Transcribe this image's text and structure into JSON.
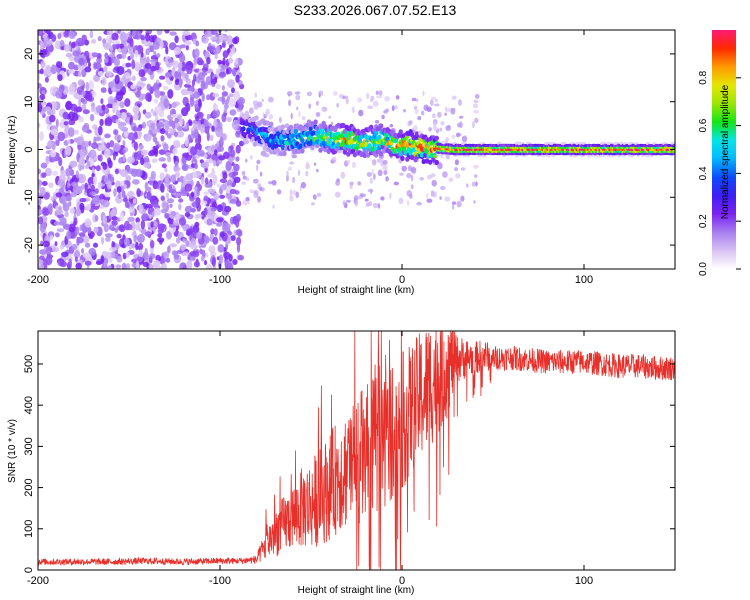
{
  "figure": {
    "title": "S233.2026.067.07.52.E13"
  },
  "colors": {
    "snr_line": "#e8302a",
    "colormap": [
      "#ffffff",
      "#d9c2f5",
      "#a77ff0",
      "#7b22f2",
      "#3c1ff5",
      "#0d4bff",
      "#00b8ff",
      "#00e5e5",
      "#14e614",
      "#9ae600",
      "#e6e600",
      "#ff9900",
      "#ff2a00",
      "#ff1a75"
    ]
  },
  "chart_data": [
    {
      "type": "heatmap",
      "title": "",
      "xlabel": "Height of straight line (km)",
      "ylabel": "Frequency (Hz)",
      "xlim": [
        -200,
        150
      ],
      "ylim": [
        -25,
        25
      ],
      "xticks": [
        -200,
        -100,
        0,
        100
      ],
      "yticks": [
        -20,
        -10,
        0,
        10,
        20
      ],
      "colorbar": {
        "label": "Normalized spectral amplitude",
        "range": [
          0,
          1
        ],
        "ticks": [
          0.0,
          0.2,
          0.4,
          0.6,
          0.8
        ]
      },
      "noise_region": {
        "x_from": -200,
        "x_to": -88,
        "amplitude": [
          0.05,
          0.25
        ]
      },
      "ridge": {
        "description_points": [
          {
            "x": -88,
            "y": 5,
            "amp": 0.3
          },
          {
            "x": -80,
            "y": 4,
            "amp": 0.45
          },
          {
            "x": -70,
            "y": 2,
            "amp": 0.5
          },
          {
            "x": -60,
            "y": 2,
            "amp": 0.55
          },
          {
            "x": -50,
            "y": 3,
            "amp": 0.6
          },
          {
            "x": -40,
            "y": 2.5,
            "amp": 0.75
          },
          {
            "x": -30,
            "y": 2,
            "amp": 0.85
          },
          {
            "x": -20,
            "y": 1.5,
            "amp": 0.8
          },
          {
            "x": -10,
            "y": 2,
            "amp": 0.75
          },
          {
            "x": 0,
            "y": 1,
            "amp": 0.9
          },
          {
            "x": 10,
            "y": 0.5,
            "amp": 0.95
          },
          {
            "x": 30,
            "y": 0,
            "amp": 0.98
          },
          {
            "x": 60,
            "y": 0,
            "amp": 1.0
          },
          {
            "x": 100,
            "y": 0,
            "amp": 1.0
          },
          {
            "x": 150,
            "y": 0,
            "amp": 1.0
          }
        ]
      }
    },
    {
      "type": "line",
      "title": "",
      "xlabel": "Height of straight line (km)",
      "ylabel": "SNR (10 * v/v)",
      "xlim": [
        -200,
        150
      ],
      "ylim": [
        0,
        580
      ],
      "xticks": [
        -200,
        -100,
        0,
        100
      ],
      "yticks": [
        0,
        100,
        200,
        300,
        400,
        500
      ],
      "series": [
        {
          "x": [
            -200,
            -180,
            -160,
            -140,
            -120,
            -100,
            -90,
            -80,
            -75,
            -70,
            -65,
            -60,
            -55,
            -50,
            -45,
            -40,
            -35,
            -30,
            -25,
            -20,
            -15,
            -10,
            -5,
            0,
            5,
            10,
            15,
            20,
            25,
            30,
            35,
            40,
            45,
            50,
            60,
            70,
            80,
            90,
            100,
            110,
            120,
            130,
            140,
            150
          ],
          "y": [
            20,
            20,
            20,
            22,
            20,
            22,
            22,
            25,
            60,
            90,
            110,
            130,
            150,
            160,
            180,
            200,
            230,
            250,
            270,
            280,
            300,
            320,
            340,
            360,
            390,
            420,
            450,
            480,
            500,
            510,
            515,
            515,
            520,
            515,
            515,
            510,
            505,
            505,
            505,
            500,
            495,
            495,
            490,
            490
          ],
          "noise_amplitude": [
            8,
            8,
            8,
            8,
            8,
            8,
            8,
            10,
            40,
            60,
            70,
            80,
            100,
            110,
            120,
            130,
            140,
            150,
            160,
            170,
            170,
            170,
            170,
            170,
            160,
            160,
            160,
            150,
            130,
            60,
            50,
            40,
            40,
            30,
            30,
            30,
            30,
            30,
            30,
            30,
            30,
            30,
            30,
            30
          ]
        }
      ]
    }
  ]
}
